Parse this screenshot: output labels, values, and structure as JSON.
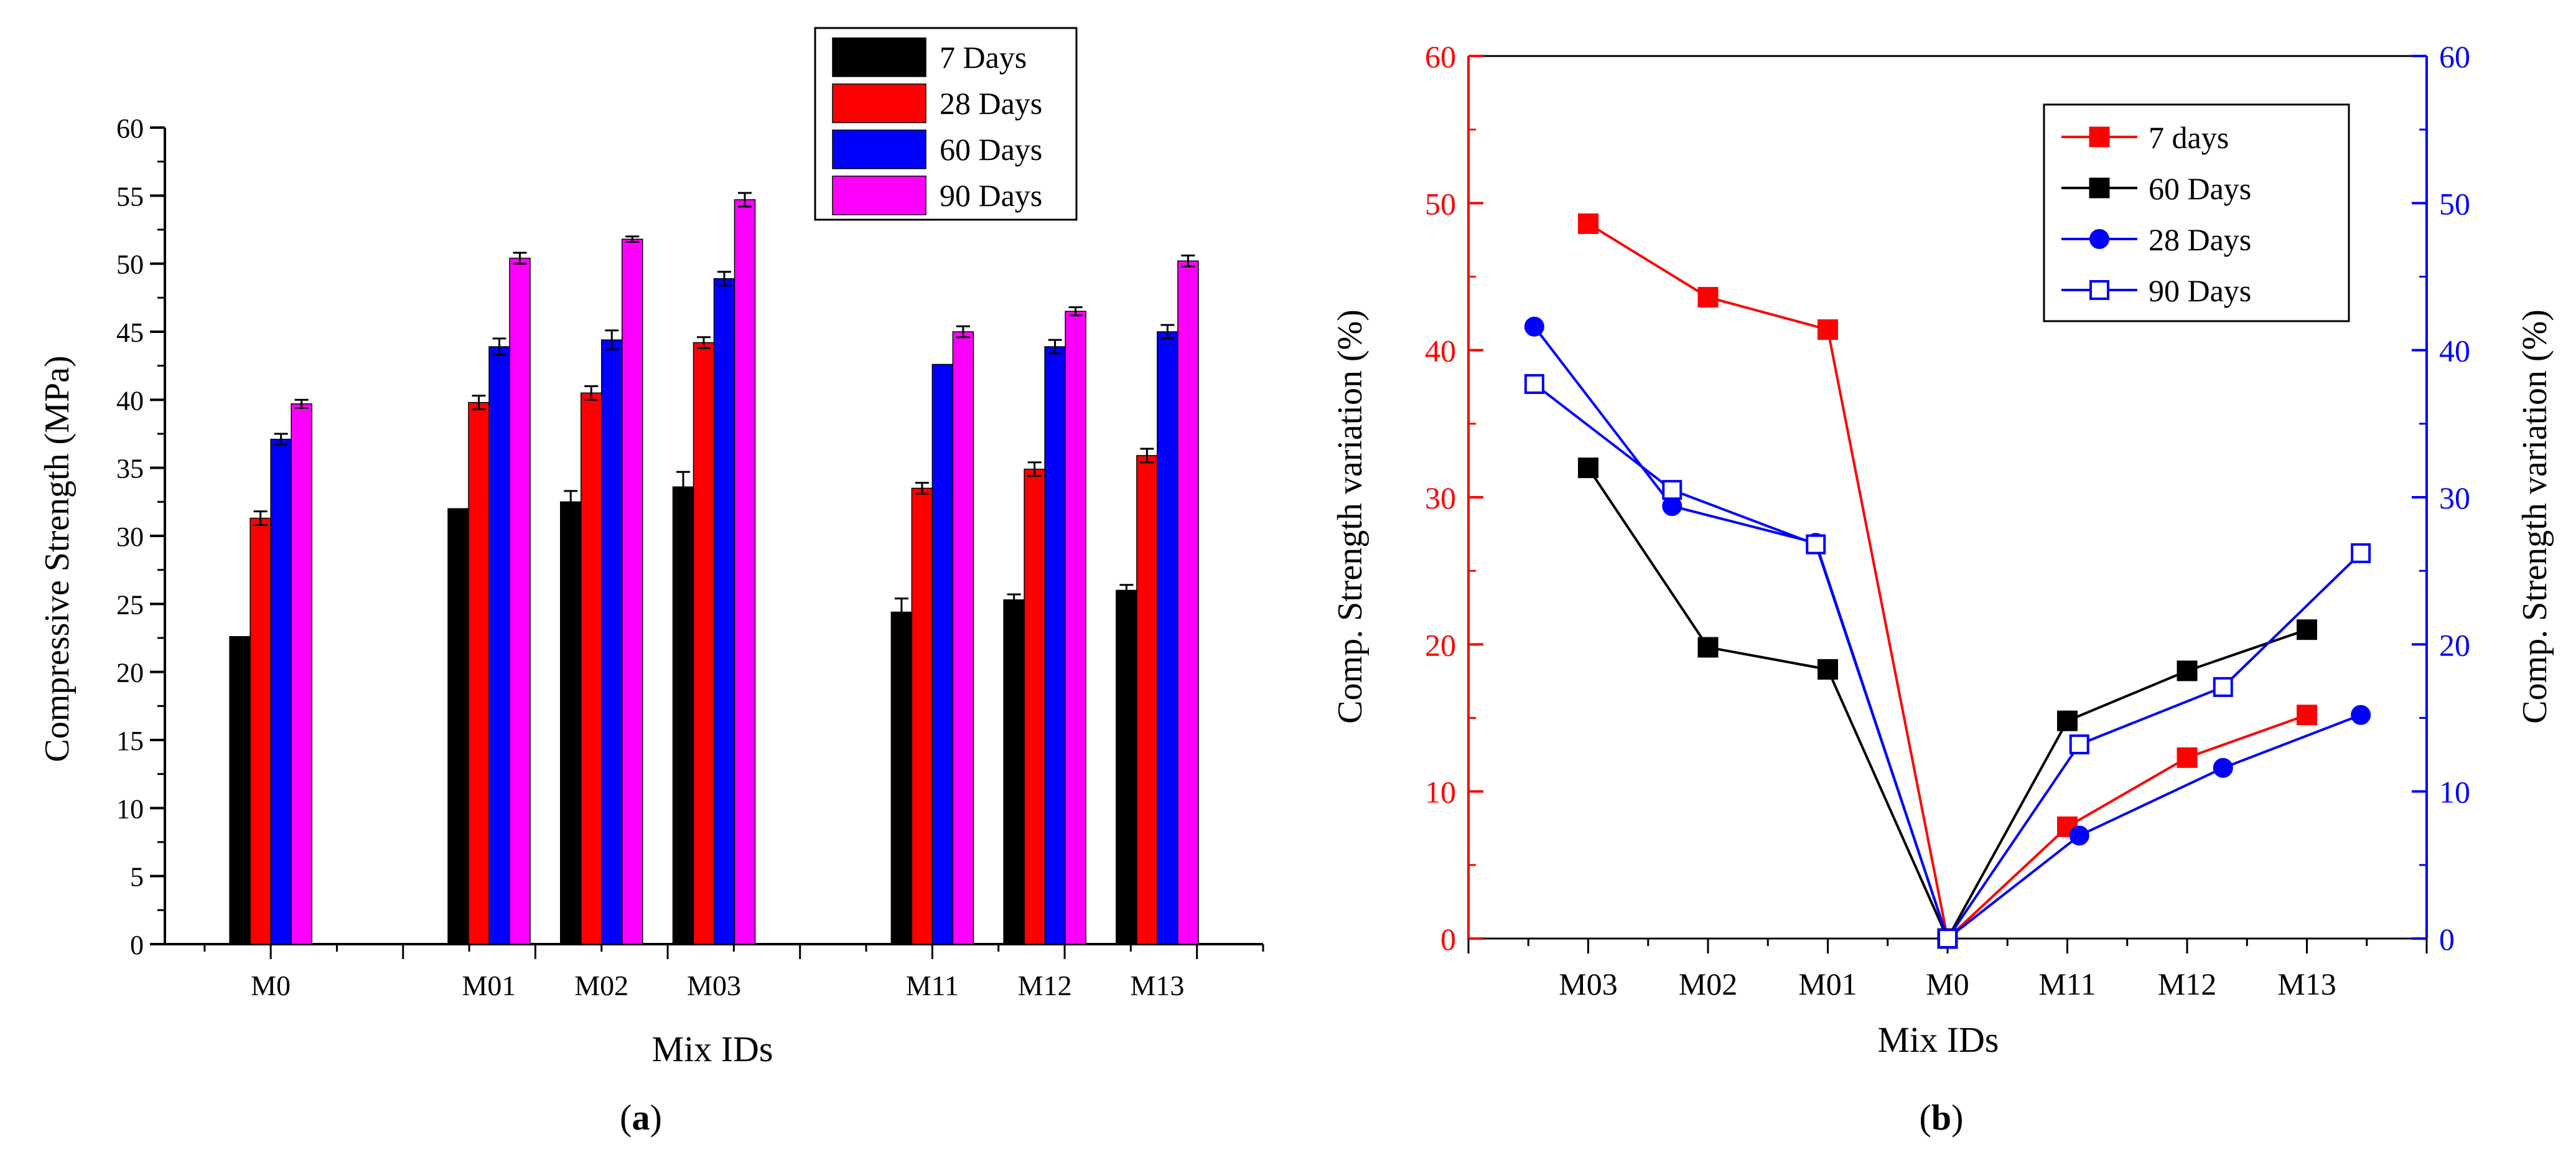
{
  "chart_data": [
    {
      "type": "bar",
      "panel_label": "(a)",
      "title": "",
      "xlabel": "Mix IDs",
      "ylabel": "Compressive Strength (MPa)",
      "ylim": [
        0,
        60
      ],
      "yticks": [
        0,
        5,
        10,
        15,
        20,
        25,
        30,
        35,
        40,
        45,
        50,
        55,
        60
      ],
      "categories": [
        "M0",
        "M01",
        "M02",
        "M03",
        "M11",
        "M12",
        "M13"
      ],
      "category_positions": [
        0,
        1.65,
        2.5,
        3.35,
        5.0,
        5.85,
        6.7
      ],
      "xlim": [
        -0.8,
        7.5
      ],
      "grid": false,
      "legend_position": "top-center",
      "error_bars": true,
      "series": [
        {
          "name": "7 Days",
          "color": "#000000",
          "values": [
            22.6,
            32.0,
            32.5,
            33.6,
            24.4,
            25.3,
            26.0
          ],
          "errors": [
            0.0,
            0.0,
            0.8,
            1.1,
            1.0,
            0.4,
            0.4
          ]
        },
        {
          "name": "28 Days",
          "color": "#ff0000",
          "values": [
            31.3,
            39.8,
            40.5,
            44.2,
            33.5,
            34.9,
            35.9
          ],
          "errors": [
            0.5,
            0.5,
            0.5,
            0.4,
            0.4,
            0.5,
            0.5
          ]
        },
        {
          "name": "60 Days",
          "color": "#0000ff",
          "values": [
            37.1,
            43.9,
            44.4,
            48.9,
            42.6,
            43.9,
            45.0
          ],
          "errors": [
            0.4,
            0.6,
            0.7,
            0.5,
            0.0,
            0.5,
            0.5
          ]
        },
        {
          "name": "90 Days",
          "color": "#ff00ff",
          "values": [
            39.7,
            50.4,
            51.8,
            54.7,
            45.0,
            46.5,
            50.2
          ],
          "errors": [
            0.3,
            0.4,
            0.2,
            0.5,
            0.4,
            0.3,
            0.4
          ]
        }
      ]
    },
    {
      "type": "line",
      "panel_label": "(b)",
      "title": "",
      "xlabel": "Mix IDs",
      "ylabel": "Comp. Strength variation (%)",
      "ylabel_right": "Comp. Strength variation (%)",
      "ylim": [
        0,
        60
      ],
      "yticks": [
        0,
        10,
        20,
        30,
        40,
        50,
        60
      ],
      "categories": [
        "M03",
        "M02",
        "M01",
        "M0",
        "M11",
        "M12",
        "M13"
      ],
      "xlim": [
        -1.0,
        7.0
      ],
      "grid": false,
      "legend_position": "top-right",
      "left_axis_color": "#ff0000",
      "right_axis_color": "#0000ff",
      "series": [
        {
          "name": "7 days",
          "color": "#ff0000",
          "marker": "square-filled",
          "x": [
            0,
            1,
            2,
            3,
            4,
            5,
            6
          ],
          "values": [
            48.6,
            43.6,
            41.4,
            0,
            7.6,
            12.3,
            15.2
          ]
        },
        {
          "name": "60 Days",
          "color": "#000000",
          "marker": "square-filled",
          "x": [
            0,
            1,
            2,
            3,
            4,
            5,
            6
          ],
          "values": [
            32.0,
            19.8,
            18.3,
            0,
            14.8,
            18.2,
            21.0
          ]
        },
        {
          "name": "28 Days",
          "color": "#0000ff",
          "marker": "circle-filled",
          "x": [
            -0.45,
            0.7,
            1.9,
            3,
            4.1,
            5.3,
            6.45
          ],
          "values": [
            41.6,
            29.4,
            26.9,
            0,
            7.0,
            11.6,
            15.2
          ]
        },
        {
          "name": "90 Days",
          "color": "#0000ff",
          "marker": "square-open",
          "x": [
            -0.45,
            0.7,
            1.9,
            3,
            4.1,
            5.3,
            6.45
          ],
          "values": [
            37.7,
            30.5,
            26.8,
            0,
            13.2,
            17.1,
            26.2
          ]
        }
      ]
    }
  ]
}
